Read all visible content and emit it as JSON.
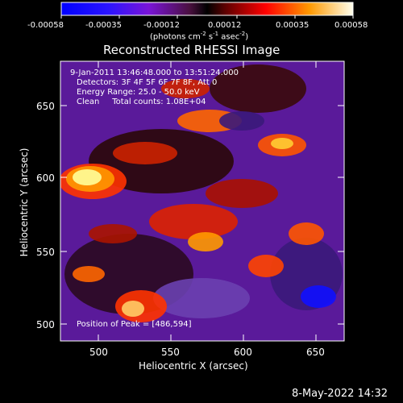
{
  "colorbar": {
    "ticks": [
      "-0.00058",
      "-0.00035",
      "-0.00012",
      "0.00012",
      "0.00035",
      "0.00058"
    ],
    "label_main": "(photons cm",
    "label_sup1": "-2",
    "label_mid": " s",
    "label_sup2": "-1",
    "label_mid2": " asec",
    "label_sup3": "-2",
    "label_end": ")"
  },
  "plot": {
    "title": "Reconstructed RHESSI Image",
    "xlabel": "Heliocentric X (arcsec)",
    "ylabel": "Heliocentric Y (arcsec)",
    "xticks": [
      "500",
      "550",
      "600",
      "650"
    ],
    "yticks": [
      "650",
      "600",
      "550",
      "500"
    ],
    "overlay": {
      "line1": "9-Jan-2011 13:46:48.000 to 13:51:24.000",
      "line2": "Detectors: 3F 4F 5F 6F 7F 8F, Att 0",
      "line3": "Energy Range: 25.0 - 50.0 keV",
      "line4": "Clean     Total counts: 1.08E+04",
      "peak": "Position of Peak = [486,594]"
    }
  },
  "footer": {
    "timestamp": "8-May-2022 14:32"
  },
  "colors": {
    "background": "#000000",
    "text": "#ffffff"
  }
}
